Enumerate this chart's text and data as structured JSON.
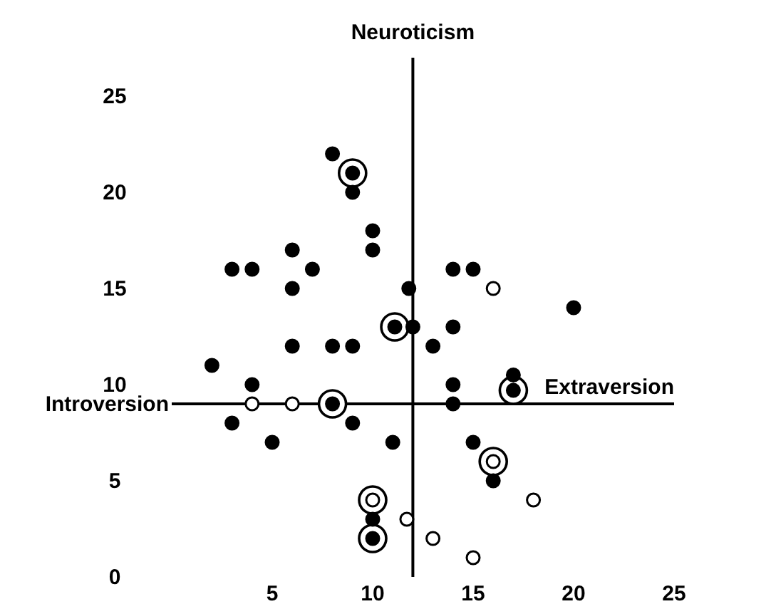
{
  "chart_data": {
    "type": "scatter",
    "marker": "circle",
    "xlim": [
      0,
      25
    ],
    "xticks": [
      5,
      10,
      15,
      20,
      25
    ],
    "ylim": [
      0,
      27
    ],
    "yticks": [
      0,
      5,
      10,
      15,
      20,
      25
    ],
    "ref_lines": [
      {
        "axis": "x",
        "value": 12,
        "label": "Neuroticism"
      },
      {
        "axis": "y",
        "value": 9,
        "label": "Extraversion"
      }
    ],
    "annotations": [
      {
        "text": "Introversion",
        "x": 0,
        "y": 9
      }
    ],
    "series": [
      {
        "type": "bubble",
        "color": "#ffffff",
        "x": [
          9,
          11.1,
          8,
          17,
          10,
          10,
          16
        ],
        "values": [
          21,
          13,
          9,
          9.7,
          4,
          2,
          6
        ],
        "sizes": [
          1,
          1,
          1,
          1,
          1,
          1,
          1
        ]
      },
      {
        "color": "#000000",
        "x": [
          8,
          9,
          9,
          10,
          10,
          6,
          3,
          4,
          7,
          6,
          11.8,
          12,
          11.1,
          6,
          8,
          9,
          2,
          4,
          8,
          13,
          14,
          15,
          14,
          20,
          17,
          17,
          14,
          14,
          3,
          5,
          9,
          11,
          10,
          10,
          15,
          16
        ],
        "values": [
          22,
          21,
          20,
          18,
          17,
          17,
          16,
          16,
          16,
          15,
          15,
          13,
          13,
          12,
          12,
          12,
          11,
          10,
          9,
          12,
          16,
          16,
          13,
          14,
          10.5,
          9.7,
          10,
          9,
          8,
          7,
          8,
          7,
          3,
          2,
          7,
          5
        ]
      },
      {
        "color": "#ffffff",
        "x": [
          4,
          6,
          16,
          10,
          11.7,
          18,
          13,
          15,
          16
        ],
        "values": [
          9,
          9,
          15,
          4,
          3,
          4,
          2,
          1,
          6
        ]
      }
    ]
  }
}
